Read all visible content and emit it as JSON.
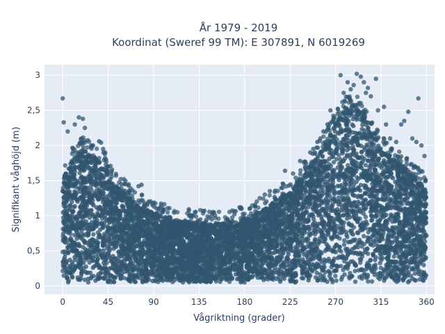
{
  "chart_data": {
    "type": "scatter",
    "title_line1": "År 1979 - 2019",
    "title_line2": "Koordinat (Sweref 99 TM): E 307891, N 6019269",
    "xlabel": "Vågriktning (grader)",
    "ylabel": "Signifikant våghöjd (m)",
    "xlim": [
      -18,
      368
    ],
    "ylim": [
      -0.12,
      3.15
    ],
    "x_ticks": [
      0,
      45,
      90,
      135,
      180,
      225,
      270,
      315,
      360
    ],
    "x_tick_labels": [
      "0",
      "45",
      "90",
      "135",
      "180",
      "225",
      "270",
      "315",
      "360"
    ],
    "y_ticks": [
      0,
      0.5,
      1,
      1.5,
      2,
      2.5,
      3
    ],
    "y_tick_labels": [
      "0",
      "0,5",
      "1",
      "1,5",
      "2",
      "2,5",
      "3"
    ],
    "grid": true,
    "marker_color": "#31566f",
    "background_color": "#e5ecf6",
    "envelope": {
      "x": [
        0,
        10,
        20,
        25,
        30,
        40,
        50,
        60,
        70,
        80,
        90,
        100,
        110,
        120,
        135,
        150,
        165,
        180,
        195,
        210,
        225,
        240,
        255,
        270,
        280,
        290,
        300,
        315,
        330,
        345,
        360
      ],
      "y_max": [
        1.5,
        1.8,
        1.95,
        1.9,
        1.85,
        1.75,
        1.45,
        1.35,
        1.2,
        1.1,
        1.05,
        1.0,
        0.95,
        0.92,
        0.9,
        0.88,
        0.9,
        0.95,
        1.05,
        1.2,
        1.35,
        1.6,
        1.9,
        2.3,
        2.55,
        2.6,
        2.35,
        1.95,
        1.8,
        1.6,
        1.4
      ],
      "y_min": 0.05
    },
    "outliers": [
      {
        "x": 0,
        "y": 2.67
      },
      {
        "x": 1,
        "y": 2.33
      },
      {
        "x": 5,
        "y": 2.2
      },
      {
        "x": 12,
        "y": 2.3
      },
      {
        "x": 16,
        "y": 2.4
      },
      {
        "x": 20,
        "y": 2.38
      },
      {
        "x": 22,
        "y": 2.25
      },
      {
        "x": 30,
        "y": 2.0
      },
      {
        "x": 36,
        "y": 2.06
      },
      {
        "x": 38,
        "y": 2.04
      },
      {
        "x": 40,
        "y": 1.95
      },
      {
        "x": 42,
        "y": 1.9
      },
      {
        "x": 45,
        "y": 1.7
      },
      {
        "x": 48,
        "y": 1.6
      },
      {
        "x": 58,
        "y": 1.45
      },
      {
        "x": 65,
        "y": 1.43
      },
      {
        "x": 75,
        "y": 1.42
      },
      {
        "x": 78,
        "y": 1.44
      },
      {
        "x": 85,
        "y": 1.2
      },
      {
        "x": 95,
        "y": 1.1
      },
      {
        "x": 100,
        "y": 1.08
      },
      {
        "x": 128,
        "y": 1.0
      },
      {
        "x": 145,
        "y": 0.97
      },
      {
        "x": 170,
        "y": 1.02
      },
      {
        "x": 175,
        "y": 1.12
      },
      {
        "x": 185,
        "y": 1.1
      },
      {
        "x": 195,
        "y": 1.25
      },
      {
        "x": 200,
        "y": 1.3
      },
      {
        "x": 205,
        "y": 1.35
      },
      {
        "x": 220,
        "y": 1.64
      },
      {
        "x": 228,
        "y": 1.6
      },
      {
        "x": 235,
        "y": 1.78
      },
      {
        "x": 240,
        "y": 1.7
      },
      {
        "x": 245,
        "y": 1.9
      },
      {
        "x": 248,
        "y": 1.95
      },
      {
        "x": 252,
        "y": 2.05
      },
      {
        "x": 255,
        "y": 2.1
      },
      {
        "x": 258,
        "y": 2.2
      },
      {
        "x": 260,
        "y": 2.05
      },
      {
        "x": 262,
        "y": 2.3
      },
      {
        "x": 265,
        "y": 2.5
      },
      {
        "x": 268,
        "y": 2.38
      },
      {
        "x": 272,
        "y": 2.45
      },
      {
        "x": 275,
        "y": 3.0
      },
      {
        "x": 278,
        "y": 2.75
      },
      {
        "x": 282,
        "y": 2.9
      },
      {
        "x": 285,
        "y": 2.8
      },
      {
        "x": 288,
        "y": 2.86
      },
      {
        "x": 291,
        "y": 3.02
      },
      {
        "x": 295,
        "y": 2.98
      },
      {
        "x": 298,
        "y": 2.9
      },
      {
        "x": 300,
        "y": 2.75
      },
      {
        "x": 302,
        "y": 2.82
      },
      {
        "x": 305,
        "y": 2.7
      },
      {
        "x": 310,
        "y": 2.95
      },
      {
        "x": 312,
        "y": 2.5
      },
      {
        "x": 318,
        "y": 2.55
      },
      {
        "x": 320,
        "y": 2.3
      },
      {
        "x": 324,
        "y": 2.1
      },
      {
        "x": 330,
        "y": 2.05
      },
      {
        "x": 335,
        "y": 2.3
      },
      {
        "x": 338,
        "y": 2.35
      },
      {
        "x": 342,
        "y": 2.48
      },
      {
        "x": 346,
        "y": 2.1
      },
      {
        "x": 350,
        "y": 2.05
      },
      {
        "x": 352,
        "y": 2.67
      },
      {
        "x": 355,
        "y": 2.0
      },
      {
        "x": 358,
        "y": 1.85
      },
      {
        "x": 359,
        "y": 1.5
      }
    ]
  }
}
